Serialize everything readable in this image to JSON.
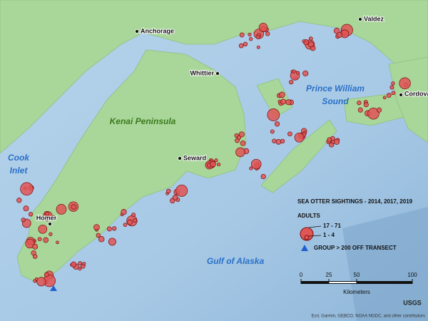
{
  "places": [
    "Valdez",
    "Anchorage",
    "Whittier",
    "Cordova",
    "Seward",
    "Homer"
  ],
  "land_label": "Kenai Peninsula",
  "water_labels": [
    [
      "Cook",
      "Inlet"
    ],
    [
      "Prince William",
      "Sound"
    ],
    [
      "Gulf of Alaska"
    ]
  ],
  "legend": {
    "title": "SEA OTTER SIGHTINGS - 2014, 2017, 2019",
    "subtitle": "ADULTS",
    "large": "17 - 71",
    "small": "1 - 4",
    "group": "GROUP > 200 OFF TRANSECT"
  },
  "scale": {
    "ticks": [
      0,
      25,
      50,
      100
    ],
    "unit": "Kilometers"
  },
  "attribution": "Esri, Garmin, GEBCO, NOAA NGDC, and other contributors",
  "logo": "USGS"
}
